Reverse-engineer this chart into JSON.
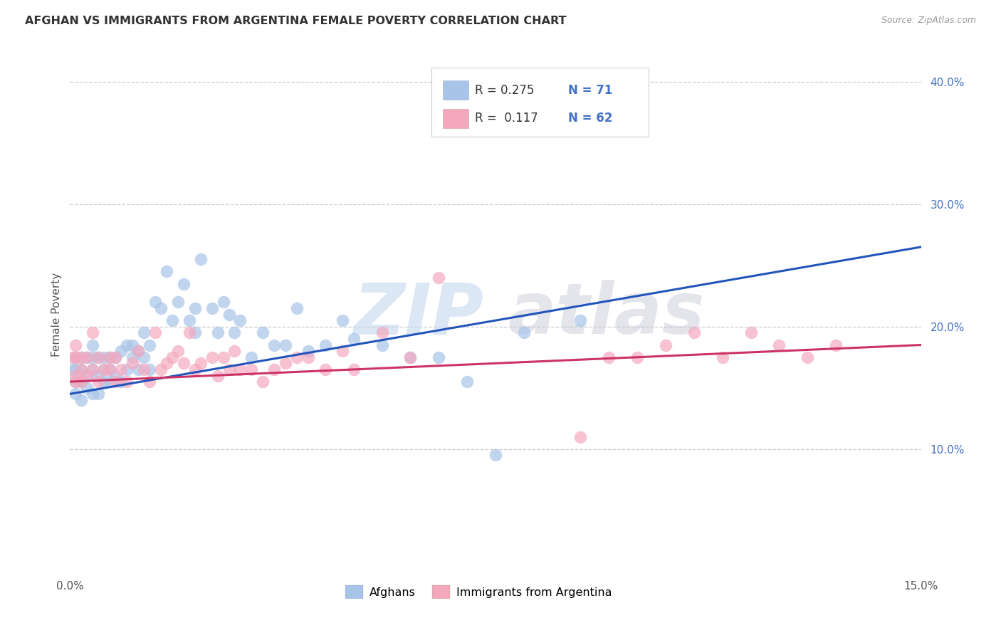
{
  "title": "AFGHAN VS IMMIGRANTS FROM ARGENTINA FEMALE POVERTY CORRELATION CHART",
  "source": "Source: ZipAtlas.com",
  "ylabel": "Female Poverty",
  "xlim": [
    0.0,
    0.15
  ],
  "ylim": [
    0.0,
    0.42
  ],
  "color_afghan": "#a8c4e8",
  "color_argentina": "#f4a8be",
  "color_line_afghan": "#2255bb",
  "color_line_argentina": "#cc3366",
  "r_afghan": 0.275,
  "n_afghan": 71,
  "r_argentina": 0.117,
  "n_argentina": 62,
  "afghan_x": [
    0.0005,
    0.001,
    0.001,
    0.001,
    0.001,
    0.002,
    0.002,
    0.002,
    0.002,
    0.003,
    0.003,
    0.003,
    0.004,
    0.004,
    0.004,
    0.004,
    0.005,
    0.005,
    0.005,
    0.006,
    0.006,
    0.006,
    0.007,
    0.007,
    0.007,
    0.008,
    0.008,
    0.009,
    0.009,
    0.01,
    0.01,
    0.011,
    0.011,
    0.012,
    0.012,
    0.013,
    0.013,
    0.014,
    0.014,
    0.015,
    0.016,
    0.017,
    0.018,
    0.019,
    0.02,
    0.021,
    0.022,
    0.022,
    0.023,
    0.025,
    0.026,
    0.027,
    0.028,
    0.029,
    0.03,
    0.032,
    0.034,
    0.036,
    0.038,
    0.04,
    0.042,
    0.045,
    0.048,
    0.05,
    0.055,
    0.06,
    0.065,
    0.07,
    0.075,
    0.08,
    0.09
  ],
  "afghan_y": [
    0.165,
    0.175,
    0.165,
    0.145,
    0.155,
    0.175,
    0.165,
    0.155,
    0.14,
    0.16,
    0.175,
    0.15,
    0.185,
    0.165,
    0.145,
    0.175,
    0.16,
    0.175,
    0.145,
    0.165,
    0.155,
    0.175,
    0.155,
    0.175,
    0.165,
    0.16,
    0.175,
    0.155,
    0.18,
    0.165,
    0.185,
    0.175,
    0.185,
    0.165,
    0.18,
    0.195,
    0.175,
    0.185,
    0.165,
    0.22,
    0.215,
    0.245,
    0.205,
    0.22,
    0.235,
    0.205,
    0.215,
    0.195,
    0.255,
    0.215,
    0.195,
    0.22,
    0.21,
    0.195,
    0.205,
    0.175,
    0.195,
    0.185,
    0.185,
    0.215,
    0.18,
    0.185,
    0.205,
    0.19,
    0.185,
    0.175,
    0.175,
    0.155,
    0.095,
    0.195,
    0.205
  ],
  "argentina_x": [
    0.0005,
    0.001,
    0.001,
    0.001,
    0.001,
    0.002,
    0.002,
    0.002,
    0.003,
    0.003,
    0.004,
    0.004,
    0.005,
    0.005,
    0.006,
    0.007,
    0.007,
    0.008,
    0.008,
    0.009,
    0.01,
    0.011,
    0.012,
    0.013,
    0.014,
    0.015,
    0.016,
    0.017,
    0.018,
    0.019,
    0.02,
    0.021,
    0.022,
    0.023,
    0.025,
    0.026,
    0.027,
    0.028,
    0.029,
    0.03,
    0.032,
    0.034,
    0.036,
    0.038,
    0.04,
    0.042,
    0.045,
    0.048,
    0.05,
    0.055,
    0.06,
    0.065,
    0.09,
    0.095,
    0.1,
    0.105,
    0.11,
    0.115,
    0.12,
    0.125,
    0.13,
    0.135
  ],
  "argentina_y": [
    0.175,
    0.185,
    0.175,
    0.16,
    0.155,
    0.175,
    0.165,
    0.155,
    0.175,
    0.16,
    0.165,
    0.195,
    0.155,
    0.175,
    0.165,
    0.165,
    0.175,
    0.155,
    0.175,
    0.165,
    0.155,
    0.17,
    0.18,
    0.165,
    0.155,
    0.195,
    0.165,
    0.17,
    0.175,
    0.18,
    0.17,
    0.195,
    0.165,
    0.17,
    0.175,
    0.16,
    0.175,
    0.165,
    0.18,
    0.165,
    0.165,
    0.155,
    0.165,
    0.17,
    0.175,
    0.175,
    0.165,
    0.18,
    0.165,
    0.195,
    0.175,
    0.24,
    0.11,
    0.175,
    0.175,
    0.185,
    0.195,
    0.175,
    0.195,
    0.185,
    0.175,
    0.185
  ],
  "line_afghan_x0": 0.0,
  "line_afghan_y0": 0.145,
  "line_afghan_x1": 0.15,
  "line_afghan_y1": 0.265,
  "line_argentina_x0": 0.0,
  "line_argentina_y0": 0.155,
  "line_argentina_x1": 0.15,
  "line_argentina_y1": 0.185
}
